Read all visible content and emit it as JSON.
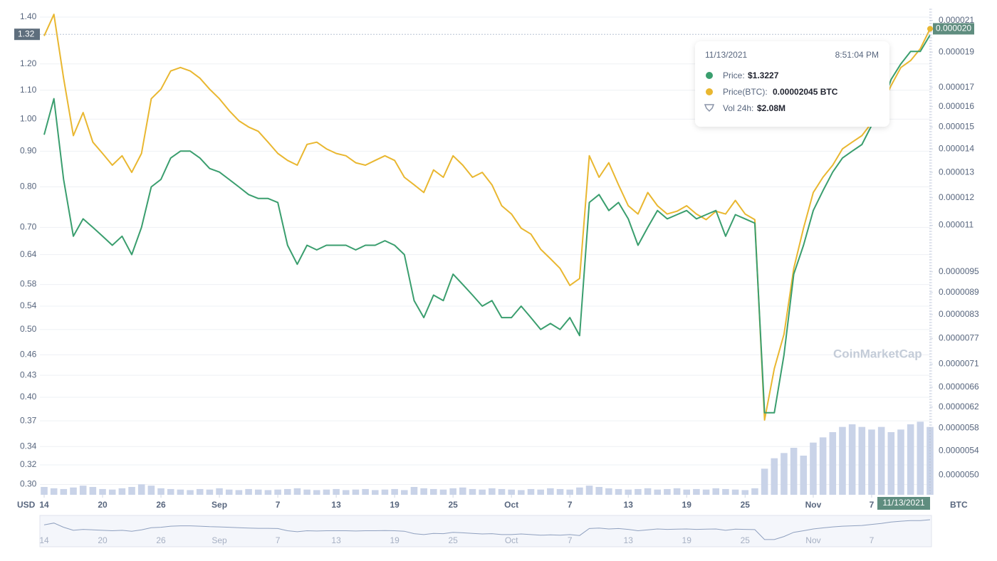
{
  "chart_data": {
    "type": "line",
    "log_scale": true,
    "grid": true,
    "x": [
      "2021-08-14",
      "2021-08-15",
      "2021-08-16",
      "2021-08-17",
      "2021-08-18",
      "2021-08-19",
      "2021-08-20",
      "2021-08-21",
      "2021-08-22",
      "2021-08-23",
      "2021-08-24",
      "2021-08-25",
      "2021-08-26",
      "2021-08-27",
      "2021-08-28",
      "2021-08-29",
      "2021-08-30",
      "2021-08-31",
      "2021-09-01",
      "2021-09-02",
      "2021-09-03",
      "2021-09-04",
      "2021-09-05",
      "2021-09-06",
      "2021-09-07",
      "2021-09-08",
      "2021-09-09",
      "2021-09-10",
      "2021-09-11",
      "2021-09-12",
      "2021-09-13",
      "2021-09-14",
      "2021-09-15",
      "2021-09-16",
      "2021-09-17",
      "2021-09-18",
      "2021-09-19",
      "2021-09-20",
      "2021-09-21",
      "2021-09-22",
      "2021-09-23",
      "2021-09-24",
      "2021-09-25",
      "2021-09-26",
      "2021-09-27",
      "2021-09-28",
      "2021-09-29",
      "2021-09-30",
      "2021-10-01",
      "2021-10-02",
      "2021-10-03",
      "2021-10-04",
      "2021-10-05",
      "2021-10-06",
      "2021-10-07",
      "2021-10-08",
      "2021-10-09",
      "2021-10-10",
      "2021-10-11",
      "2021-10-12",
      "2021-10-13",
      "2021-10-14",
      "2021-10-15",
      "2021-10-16",
      "2021-10-17",
      "2021-10-18",
      "2021-10-19",
      "2021-10-20",
      "2021-10-21",
      "2021-10-22",
      "2021-10-23",
      "2021-10-24",
      "2021-10-25",
      "2021-10-26",
      "2021-10-27",
      "2021-10-28",
      "2021-10-29",
      "2021-10-30",
      "2021-10-31",
      "2021-11-01",
      "2021-11-02",
      "2021-11-03",
      "2021-11-04",
      "2021-11-05",
      "2021-11-06",
      "2021-11-07",
      "2021-11-08",
      "2021-11-09",
      "2021-11-10",
      "2021-11-11",
      "2021-11-12",
      "2021-11-13"
    ],
    "xlim": [
      "2021-08-14",
      "2021-11-13"
    ],
    "xticks": [
      {
        "value": "2021-08-14",
        "label": "14"
      },
      {
        "value": "2021-08-20",
        "label": "20"
      },
      {
        "value": "2021-08-26",
        "label": "26"
      },
      {
        "value": "2021-09-01",
        "label": "Sep"
      },
      {
        "value": "2021-09-07",
        "label": "7"
      },
      {
        "value": "2021-09-13",
        "label": "13"
      },
      {
        "value": "2021-09-19",
        "label": "19"
      },
      {
        "value": "2021-09-25",
        "label": "25"
      },
      {
        "value": "2021-10-01",
        "label": "Oct"
      },
      {
        "value": "2021-10-07",
        "label": "7"
      },
      {
        "value": "2021-10-13",
        "label": "13"
      },
      {
        "value": "2021-10-19",
        "label": "19"
      },
      {
        "value": "2021-10-25",
        "label": "25"
      },
      {
        "value": "2021-11-01",
        "label": "Nov"
      },
      {
        "value": "2021-11-07",
        "label": "7"
      }
    ],
    "y_label": "USD",
    "y2_label": "BTC",
    "ylim": [
      0.29,
      1.44
    ],
    "yticks": [
      {
        "value": 0.3,
        "label": "0.30"
      },
      {
        "value": 0.32,
        "label": "0.32"
      },
      {
        "value": 0.34,
        "label": "0.34"
      },
      {
        "value": 0.37,
        "label": "0.37"
      },
      {
        "value": 0.4,
        "label": "0.40"
      },
      {
        "value": 0.43,
        "label": "0.43"
      },
      {
        "value": 0.46,
        "label": "0.46"
      },
      {
        "value": 0.5,
        "label": "0.50"
      },
      {
        "value": 0.54,
        "label": "0.54"
      },
      {
        "value": 0.58,
        "label": "0.58"
      },
      {
        "value": 0.64,
        "label": "0.64"
      },
      {
        "value": 0.7,
        "label": "0.70"
      },
      {
        "value": 0.8,
        "label": "0.80"
      },
      {
        "value": 0.9,
        "label": "0.90"
      },
      {
        "value": 1.0,
        "label": "1.00"
      },
      {
        "value": 1.1,
        "label": "1.10"
      },
      {
        "value": 1.2,
        "label": "1.20"
      },
      {
        "value": 1.4,
        "label": "1.40"
      }
    ],
    "y2lim": [
      4.7e-06,
      2.18e-05
    ],
    "y2ticks": [
      {
        "value": 5e-06,
        "label": "0.0000050"
      },
      {
        "value": 5.4e-06,
        "label": "0.0000054"
      },
      {
        "value": 5.8e-06,
        "label": "0.0000058"
      },
      {
        "value": 6.2e-06,
        "label": "0.0000062"
      },
      {
        "value": 6.6e-06,
        "label": "0.0000066"
      },
      {
        "value": 7.1e-06,
        "label": "0.0000071"
      },
      {
        "value": 7.7e-06,
        "label": "0.0000077"
      },
      {
        "value": 8.3e-06,
        "label": "0.0000083"
      },
      {
        "value": 8.9e-06,
        "label": "0.0000089"
      },
      {
        "value": 9.5e-06,
        "label": "0.0000095"
      },
      {
        "value": 1.1e-05,
        "label": "0.000011"
      },
      {
        "value": 1.2e-05,
        "label": "0.000012"
      },
      {
        "value": 1.3e-05,
        "label": "0.000013"
      },
      {
        "value": 1.4e-05,
        "label": "0.000014"
      },
      {
        "value": 1.5e-05,
        "label": "0.000015"
      },
      {
        "value": 1.6e-05,
        "label": "0.000016"
      },
      {
        "value": 1.7e-05,
        "label": "0.000017"
      },
      {
        "value": 1.9e-05,
        "label": "0.000019"
      },
      {
        "value": 2.1e-05,
        "label": "0.000021"
      }
    ],
    "series": [
      {
        "name": "Price",
        "color": "#3a9e6e",
        "values": [
          0.95,
          1.07,
          0.82,
          0.68,
          0.72,
          0.7,
          0.68,
          0.66,
          0.68,
          0.64,
          0.7,
          0.8,
          0.82,
          0.88,
          0.9,
          0.9,
          0.88,
          0.85,
          0.84,
          0.82,
          0.8,
          0.78,
          0.77,
          0.77,
          0.76,
          0.66,
          0.62,
          0.66,
          0.65,
          0.66,
          0.66,
          0.66,
          0.65,
          0.66,
          0.66,
          0.67,
          0.66,
          0.64,
          0.55,
          0.52,
          0.56,
          0.55,
          0.6,
          0.58,
          0.56,
          0.54,
          0.55,
          0.52,
          0.52,
          0.54,
          0.52,
          0.5,
          0.51,
          0.5,
          0.52,
          0.49,
          0.76,
          0.78,
          0.74,
          0.76,
          0.72,
          0.66,
          0.7,
          0.74,
          0.72,
          0.73,
          0.74,
          0.72,
          0.73,
          0.74,
          0.68,
          0.73,
          0.72,
          0.71,
          0.38,
          0.38,
          0.46,
          0.6,
          0.66,
          0.74,
          0.79,
          0.84,
          0.88,
          0.9,
          0.92,
          0.98,
          1.04,
          1.14,
          1.2,
          1.25,
          1.25,
          1.32
        ]
      },
      {
        "name": "Price(BTC)",
        "color": "#e9b730",
        "axis": "y2",
        "values": [
          2e-05,
          2.14e-05,
          1.75e-05,
          1.46e-05,
          1.57e-05,
          1.43e-05,
          1.38e-05,
          1.33e-05,
          1.37e-05,
          1.3e-05,
          1.38e-05,
          1.64e-05,
          1.69e-05,
          1.79e-05,
          1.81e-05,
          1.79e-05,
          1.75e-05,
          1.69e-05,
          1.64e-05,
          1.58e-05,
          1.53e-05,
          1.5e-05,
          1.48e-05,
          1.43e-05,
          1.38e-05,
          1.35e-05,
          1.33e-05,
          1.42e-05,
          1.43e-05,
          1.4e-05,
          1.38e-05,
          1.37e-05,
          1.34e-05,
          1.33e-05,
          1.35e-05,
          1.37e-05,
          1.35e-05,
          1.28e-05,
          1.25e-05,
          1.22e-05,
          1.31e-05,
          1.28e-05,
          1.37e-05,
          1.33e-05,
          1.28e-05,
          1.3e-05,
          1.25e-05,
          1.17e-05,
          1.14e-05,
          1.09e-05,
          1.07e-05,
          1.02e-05,
          9.9e-06,
          9.6e-06,
          9.1e-06,
          9.3e-06,
          1.37e-05,
          1.28e-05,
          1.34e-05,
          1.25e-05,
          1.17e-05,
          1.14e-05,
          1.22e-05,
          1.17e-05,
          1.14e-05,
          1.15e-05,
          1.17e-05,
          1.14e-05,
          1.12e-05,
          1.15e-05,
          1.14e-05,
          1.19e-05,
          1.14e-05,
          1.12e-05,
          5.95e-06,
          7e-06,
          7.8e-06,
          9.6e-06,
          1.09e-05,
          1.22e-05,
          1.28e-05,
          1.33e-05,
          1.4e-05,
          1.43e-05,
          1.46e-05,
          1.52e-05,
          1.6e-05,
          1.71e-05,
          1.81e-05,
          1.85e-05,
          1.92e-05,
          2.045e-05
        ]
      }
    ],
    "volume": {
      "color": "#c9d3e8",
      "ylim": [
        0,
        3
      ],
      "values": [
        0.3,
        0.25,
        0.22,
        0.28,
        0.35,
        0.3,
        0.22,
        0.2,
        0.25,
        0.3,
        0.4,
        0.35,
        0.25,
        0.22,
        0.2,
        0.18,
        0.22,
        0.2,
        0.25,
        0.2,
        0.18,
        0.22,
        0.2,
        0.18,
        0.2,
        0.22,
        0.25,
        0.2,
        0.18,
        0.2,
        0.22,
        0.18,
        0.2,
        0.22,
        0.18,
        0.2,
        0.22,
        0.18,
        0.3,
        0.25,
        0.22,
        0.2,
        0.25,
        0.28,
        0.22,
        0.2,
        0.25,
        0.22,
        0.2,
        0.18,
        0.22,
        0.2,
        0.25,
        0.22,
        0.2,
        0.28,
        0.35,
        0.3,
        0.25,
        0.22,
        0.2,
        0.22,
        0.25,
        0.2,
        0.22,
        0.25,
        0.2,
        0.22,
        0.2,
        0.25,
        0.22,
        0.2,
        0.18,
        0.25,
        1.0,
        1.4,
        1.6,
        1.8,
        1.5,
        2.0,
        2.2,
        2.4,
        2.6,
        2.7,
        2.6,
        2.5,
        2.6,
        2.4,
        2.5,
        2.7,
        2.8,
        2.6
      ]
    },
    "crosshair": {
      "y": {
        "value": 1.3227,
        "label": "1.32"
      },
      "y2": {
        "value": 2.045e-05,
        "label": "0.000020"
      },
      "x": {
        "value": "2021-11-13",
        "label": "11/13/2021"
      }
    },
    "tooltip": {
      "date": "11/13/2021",
      "time": "8:51:04 PM",
      "rows": [
        {
          "label": "Price:",
          "value": "$1.3227"
        },
        {
          "label": "Price(BTC):",
          "value": "0.00002045 BTC"
        },
        {
          "label": "Vol 24h:",
          "value": "$2.08M"
        }
      ]
    },
    "watermark": "CoinMarketCap"
  }
}
